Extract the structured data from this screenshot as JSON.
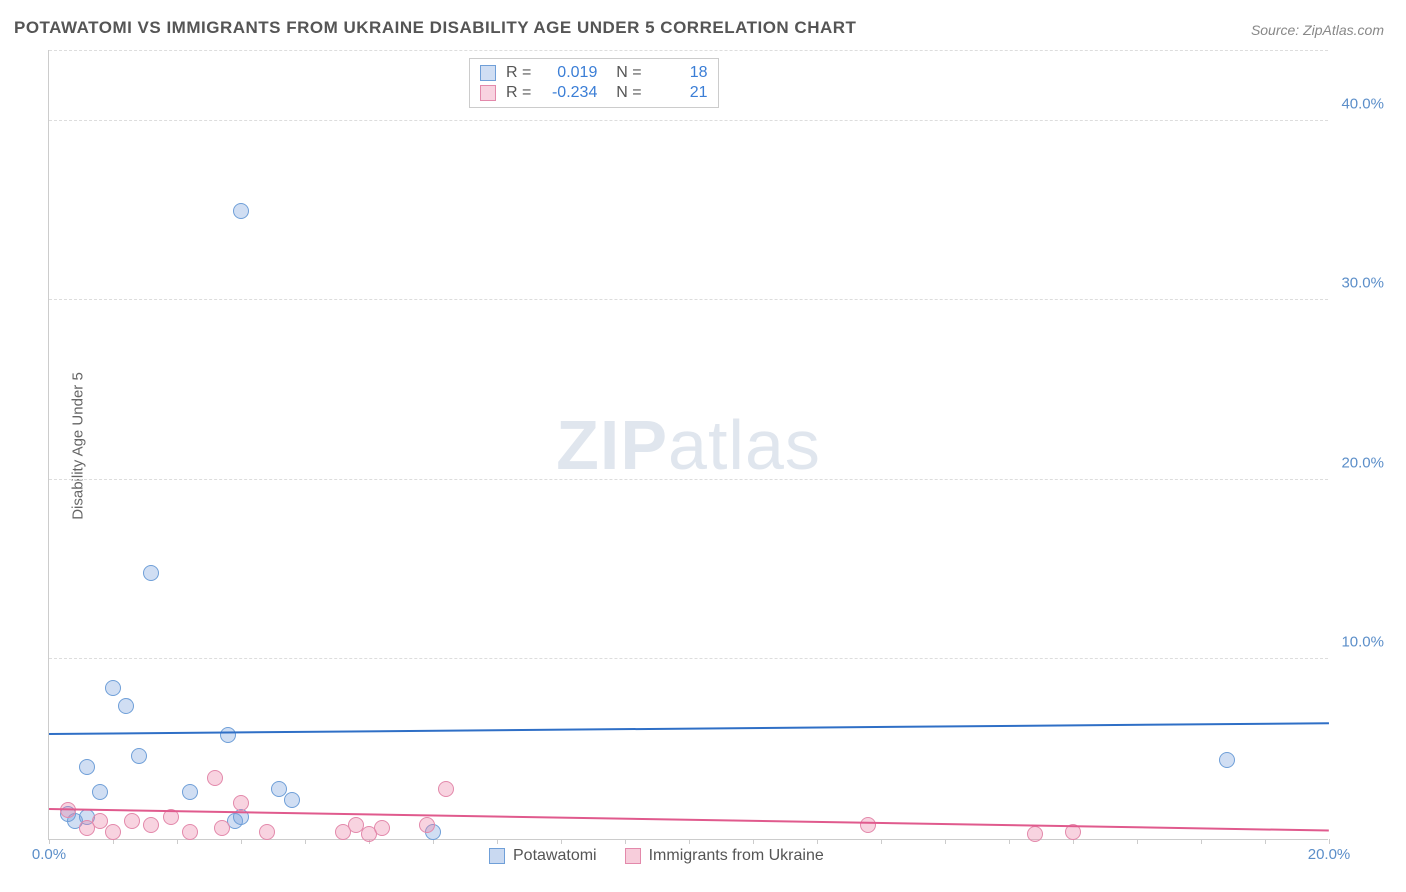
{
  "title": "POTAWATOMI VS IMMIGRANTS FROM UKRAINE DISABILITY AGE UNDER 5 CORRELATION CHART",
  "source": "Source: ZipAtlas.com",
  "ylabel": "Disability Age Under 5",
  "watermark": {
    "bold": "ZIP",
    "rest": "atlas"
  },
  "chart": {
    "type": "scatter",
    "xlim": [
      0,
      20
    ],
    "ylim": [
      0,
      44
    ],
    "xticks": [
      0,
      5,
      10,
      15,
      20
    ],
    "xtick_labels": [
      "0.0%",
      "",
      "",
      "",
      "20.0%"
    ],
    "yticks": [
      10,
      20,
      30,
      40
    ],
    "ytick_labels": [
      "10.0%",
      "20.0%",
      "30.0%",
      "40.0%"
    ],
    "grid_color": "#dddddd",
    "background_color": "#ffffff",
    "marker_radius": 8,
    "series": [
      {
        "name": "Potawatomi",
        "fill": "rgba(120,160,220,0.35)",
        "stroke": "#6f9fd8",
        "r_value": "0.019",
        "n_value": "18",
        "trend": {
          "y_at_x0": 5.8,
          "y_at_xmax": 6.4,
          "color": "#2f6fc6"
        },
        "points": [
          {
            "x": 3.0,
            "y": 35.0
          },
          {
            "x": 1.6,
            "y": 14.8
          },
          {
            "x": 1.0,
            "y": 8.4
          },
          {
            "x": 1.2,
            "y": 7.4
          },
          {
            "x": 1.4,
            "y": 4.6
          },
          {
            "x": 2.8,
            "y": 5.8
          },
          {
            "x": 0.6,
            "y": 4.0
          },
          {
            "x": 0.8,
            "y": 2.6
          },
          {
            "x": 2.2,
            "y": 2.6
          },
          {
            "x": 3.6,
            "y": 2.8
          },
          {
            "x": 3.8,
            "y": 2.2
          },
          {
            "x": 0.3,
            "y": 1.4
          },
          {
            "x": 0.4,
            "y": 1.0
          },
          {
            "x": 0.6,
            "y": 1.2
          },
          {
            "x": 2.9,
            "y": 1.0
          },
          {
            "x": 3.0,
            "y": 1.2
          },
          {
            "x": 6.0,
            "y": 0.4
          },
          {
            "x": 18.4,
            "y": 4.4
          }
        ]
      },
      {
        "name": "Immigrants from Ukraine",
        "fill": "rgba(235,130,165,0.35)",
        "stroke": "#e389ab",
        "r_value": "-0.234",
        "n_value": "21",
        "trend": {
          "y_at_x0": 1.6,
          "y_at_xmax": 0.4,
          "color": "#e05a8d"
        },
        "points": [
          {
            "x": 2.6,
            "y": 3.4
          },
          {
            "x": 6.2,
            "y": 2.8
          },
          {
            "x": 3.0,
            "y": 2.0
          },
          {
            "x": 0.3,
            "y": 1.6
          },
          {
            "x": 0.6,
            "y": 0.6
          },
          {
            "x": 0.8,
            "y": 1.0
          },
          {
            "x": 1.0,
            "y": 0.4
          },
          {
            "x": 1.3,
            "y": 1.0
          },
          {
            "x": 1.6,
            "y": 0.8
          },
          {
            "x": 1.9,
            "y": 1.2
          },
          {
            "x": 2.2,
            "y": 0.4
          },
          {
            "x": 2.7,
            "y": 0.6
          },
          {
            "x": 3.4,
            "y": 0.4
          },
          {
            "x": 4.6,
            "y": 0.4
          },
          {
            "x": 4.8,
            "y": 0.8
          },
          {
            "x": 5.0,
            "y": 0.3
          },
          {
            "x": 5.2,
            "y": 0.6
          },
          {
            "x": 5.9,
            "y": 0.8
          },
          {
            "x": 12.8,
            "y": 0.8
          },
          {
            "x": 15.4,
            "y": 0.3
          },
          {
            "x": 16.0,
            "y": 0.4
          }
        ]
      }
    ]
  },
  "legend_bottom": [
    {
      "label": "Potawatomi",
      "fill": "rgba(120,160,220,0.4)",
      "stroke": "#6f9fd8"
    },
    {
      "label": "Immigrants from Ukraine",
      "fill": "rgba(235,130,165,0.4)",
      "stroke": "#e389ab"
    }
  ]
}
